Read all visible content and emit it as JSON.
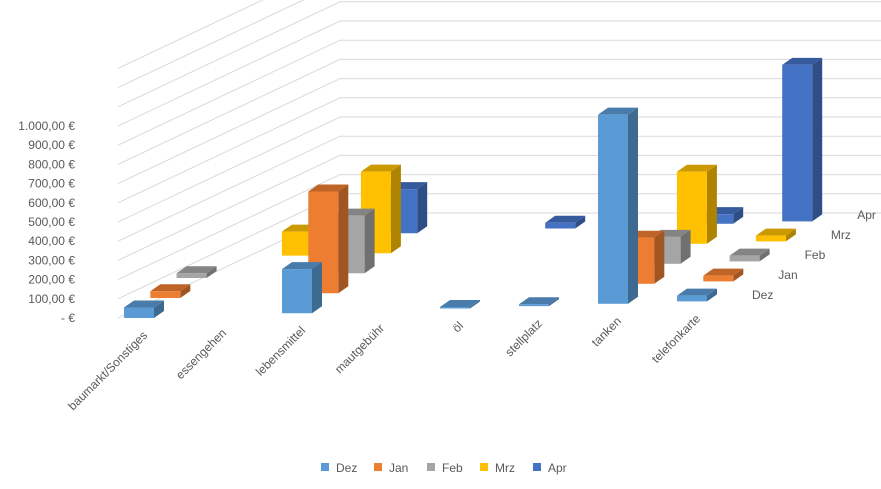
{
  "chart_data": {
    "type": "bar",
    "subtype": "3d-column",
    "categories": [
      "baumarkt/Sonstiges",
      "essengehen",
      "lebensmittel",
      "mautgebühr",
      "öl",
      "stellplatz",
      "tanken",
      "telefonkarte"
    ],
    "series": [
      {
        "name": "Dez",
        "color": "#5B9BD5",
        "values": [
          55,
          0,
          230,
          0,
          8,
          10,
          985,
          30
        ]
      },
      {
        "name": "Jan",
        "color": "#ED7D31",
        "values": [
          35,
          0,
          530,
          0,
          0,
          0,
          240,
          30
        ]
      },
      {
        "name": "Feb",
        "color": "#A5A5A5",
        "values": [
          25,
          0,
          300,
          0,
          0,
          0,
          140,
          30
        ]
      },
      {
        "name": "Mrz",
        "color": "#FFC000",
        "values": [
          0,
          125,
          425,
          0,
          0,
          0,
          375,
          30
        ]
      },
      {
        "name": "Apr",
        "color": "#4472C4",
        "values": [
          0,
          20,
          230,
          0,
          30,
          0,
          50,
          815
        ]
      }
    ],
    "y_ticks": [
      "-  €",
      "100,00 €",
      "200,00 €",
      "300,00 €",
      "400,00 €",
      "500,00 €",
      "600,00 €",
      "700,00 €",
      "800,00 €",
      "900,00 €",
      "1.000,00 €"
    ],
    "depth_labels": [
      "Dez",
      "Jan",
      "Feb",
      "Mrz",
      "Apr"
    ],
    "ylim": [
      0,
      1000
    ],
    "grid": true,
    "legend": "bottom"
  }
}
